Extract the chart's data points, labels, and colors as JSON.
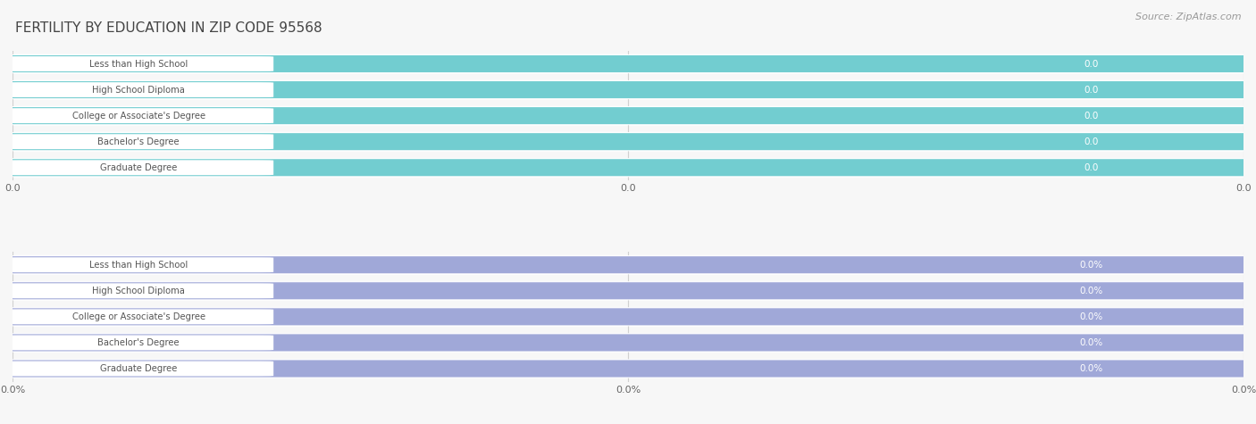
{
  "title": "FERTILITY BY EDUCATION IN ZIP CODE 95568",
  "source": "Source: ZipAtlas.com",
  "categories": [
    "Less than High School",
    "High School Diploma",
    "College or Associate's Degree",
    "Bachelor's Degree",
    "Graduate Degree"
  ],
  "values_top": [
    0.0,
    0.0,
    0.0,
    0.0,
    0.0
  ],
  "values_bottom": [
    0.0,
    0.0,
    0.0,
    0.0,
    0.0
  ],
  "bar_color_top": "#72cdd0",
  "bar_color_bottom": "#a0a8d8",
  "label_text_color": "#555555",
  "value_label_color": "#ffffff",
  "bg_color": "#f7f7f7",
  "row_bg_color": "#ebebeb",
  "grid_color": "#d0d0d0",
  "top_xlabel_ticks": [
    "0.0",
    "0.0",
    "0.0"
  ],
  "bottom_xlabel_ticks": [
    "0.0%",
    "0.0%",
    "0.0%"
  ],
  "title_color": "#444444",
  "source_color": "#999999",
  "fig_width": 14.06,
  "fig_height": 4.75
}
